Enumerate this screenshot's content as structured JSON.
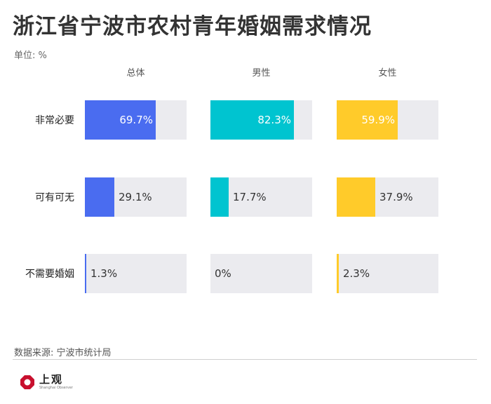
{
  "title": "浙江省宁波市农村青年婚姻需求情况",
  "unit": "单位: %",
  "source": "数据来源: 宁波市统计局",
  "logo": {
    "text": "上观",
    "subtext": "Shanghai Observer",
    "icon": "shanghai-observer-logo-icon"
  },
  "colors": {
    "总体": "#4a6cf0",
    "男性": "#00c4d0",
    "女性": "#ffcb2a",
    "track": "#ebebef"
  },
  "chart_data": {
    "type": "bar",
    "title": "浙江省宁波市农村青年婚姻需求情况",
    "unit": "%",
    "categories": [
      "非常必要",
      "可有可无",
      "不需要婚姻"
    ],
    "series": [
      {
        "name": "总体",
        "values": [
          69.7,
          29.1,
          1.3
        ],
        "labels": [
          "69.7%",
          "29.1%",
          "1.3%"
        ]
      },
      {
        "name": "男性",
        "values": [
          82.3,
          17.7,
          0
        ],
        "labels": [
          "82.3%",
          "17.7%",
          "0%"
        ]
      },
      {
        "name": "女性",
        "values": [
          59.9,
          37.9,
          2.3
        ],
        "labels": [
          "59.9%",
          "37.9%",
          "2.3%"
        ]
      }
    ],
    "xlim": [
      0,
      100
    ]
  }
}
